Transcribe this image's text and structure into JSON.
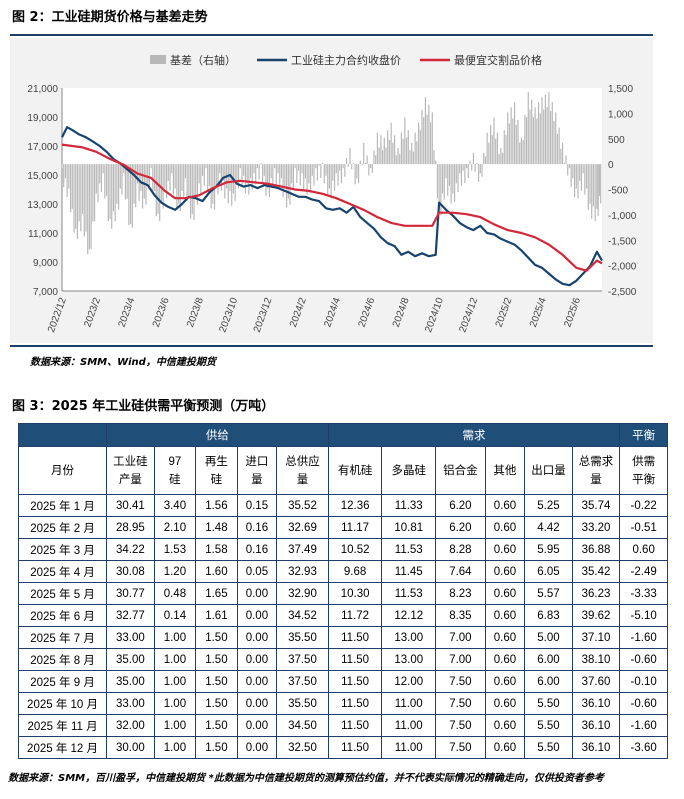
{
  "figure2_title": "图 2：工业硅期货价格与基差走势",
  "figure3_title": "图 3：2025 年工业硅供需平衡预测（万吨）",
  "source_chart": "数据来源：SMM、Wind，中信建投期货",
  "source_table": "数据来源：SMM，百川盈孚，中信建投期货 *此数据为中信建投期货的测算预估约值，并不代表实际情况的精确走向，仅供投资者参考",
  "colors": {
    "futures": "#17436f",
    "cheapest": "#d3283a",
    "basis": "#b8b8b8",
    "header": "#1f4e79"
  },
  "chart_data": {
    "type": "line",
    "legend": [
      "基差（右轴）",
      "工业硅主力合约收盘价",
      "最便宜交割品价格"
    ],
    "legend_position": "top",
    "y_left": {
      "min": 7000,
      "max": 21000,
      "ticks": [
        "7,000",
        "9,000",
        "11,000",
        "13,000",
        "15,000",
        "17,000",
        "19,000",
        "21,000"
      ]
    },
    "y_right": {
      "min": -2500,
      "max": 1500,
      "ticks": [
        "-2,500",
        "-2,000",
        "-1,500",
        "-1,000",
        "-500",
        "0",
        "500",
        "1,000",
        "1,500"
      ]
    },
    "x_ticks": [
      "2022/12",
      "2023/2",
      "2023/4",
      "2023/6",
      "2023/8",
      "2023/10",
      "2023/12",
      "2024/2",
      "2024/4",
      "2024/6",
      "2024/8",
      "2024/10",
      "2024/12",
      "2025/2",
      "2025/4",
      "2025/6"
    ],
    "series": [
      {
        "name": "工业硅主力合约收盘价",
        "axis": "left",
        "points": [
          [
            0,
            17600
          ],
          [
            0.15,
            18300
          ],
          [
            0.3,
            18100
          ],
          [
            0.5,
            17800
          ],
          [
            0.7,
            17600
          ],
          [
            0.9,
            17300
          ],
          [
            1.1,
            17000
          ],
          [
            1.3,
            16600
          ],
          [
            1.5,
            16100
          ],
          [
            1.7,
            15800
          ],
          [
            1.9,
            15400
          ],
          [
            2.1,
            15000
          ],
          [
            2.3,
            14500
          ],
          [
            2.5,
            14300
          ],
          [
            2.7,
            13600
          ],
          [
            2.9,
            13100
          ],
          [
            3.1,
            12800
          ],
          [
            3.3,
            12600
          ],
          [
            3.5,
            13000
          ],
          [
            3.7,
            13500
          ],
          [
            3.9,
            13400
          ],
          [
            4.1,
            13200
          ],
          [
            4.3,
            13800
          ],
          [
            4.5,
            14200
          ],
          [
            4.7,
            14800
          ],
          [
            4.9,
            15000
          ],
          [
            5.1,
            14400
          ],
          [
            5.3,
            14200
          ],
          [
            5.5,
            14300
          ],
          [
            5.7,
            14100
          ],
          [
            5.9,
            14300
          ],
          [
            6.1,
            14200
          ],
          [
            6.3,
            14100
          ],
          [
            6.5,
            13900
          ],
          [
            6.7,
            13700
          ],
          [
            6.9,
            13500
          ],
          [
            7.1,
            13500
          ],
          [
            7.3,
            13300
          ],
          [
            7.5,
            13200
          ],
          [
            7.7,
            12700
          ],
          [
            7.9,
            12600
          ],
          [
            8.1,
            12700
          ],
          [
            8.3,
            12400
          ],
          [
            8.5,
            12800
          ],
          [
            8.7,
            12100
          ],
          [
            8.9,
            11700
          ],
          [
            9.1,
            11300
          ],
          [
            9.3,
            10700
          ],
          [
            9.5,
            10300
          ],
          [
            9.7,
            10100
          ],
          [
            9.9,
            9500
          ],
          [
            10.1,
            9700
          ],
          [
            10.3,
            9400
          ],
          [
            10.5,
            9600
          ],
          [
            10.7,
            9400
          ],
          [
            10.9,
            9500
          ],
          [
            11.0,
            13100
          ],
          [
            11.2,
            12600
          ],
          [
            11.4,
            12200
          ],
          [
            11.6,
            11700
          ],
          [
            11.8,
            11400
          ],
          [
            12.0,
            11200
          ],
          [
            12.2,
            11500
          ],
          [
            12.4,
            11000
          ],
          [
            12.6,
            10900
          ],
          [
            12.8,
            10600
          ],
          [
            13.0,
            10400
          ],
          [
            13.2,
            10200
          ],
          [
            13.4,
            9800
          ],
          [
            13.6,
            9300
          ],
          [
            13.8,
            8800
          ],
          [
            14.0,
            8600
          ],
          [
            14.2,
            8200
          ],
          [
            14.4,
            7800
          ],
          [
            14.6,
            7500
          ],
          [
            14.8,
            7400
          ],
          [
            15.0,
            7700
          ],
          [
            15.2,
            8200
          ],
          [
            15.4,
            8700
          ],
          [
            15.6,
            9700
          ],
          [
            15.75,
            9100
          ]
        ]
      },
      {
        "name": "最便宜交割品价格",
        "axis": "left",
        "points": [
          [
            0,
            17100
          ],
          [
            0.3,
            17000
          ],
          [
            0.6,
            16900
          ],
          [
            1.0,
            16600
          ],
          [
            1.4,
            16100
          ],
          [
            1.8,
            15700
          ],
          [
            2.2,
            15100
          ],
          [
            2.6,
            14800
          ],
          [
            3.0,
            13900
          ],
          [
            3.3,
            13400
          ],
          [
            3.6,
            13400
          ],
          [
            4.0,
            13600
          ],
          [
            4.4,
            14100
          ],
          [
            4.8,
            14500
          ],
          [
            5.2,
            14600
          ],
          [
            5.6,
            14500
          ],
          [
            6.0,
            14400
          ],
          [
            6.4,
            14200
          ],
          [
            6.8,
            14000
          ],
          [
            7.2,
            13900
          ],
          [
            7.6,
            13700
          ],
          [
            8.0,
            13400
          ],
          [
            8.4,
            13000
          ],
          [
            8.8,
            12600
          ],
          [
            9.2,
            12100
          ],
          [
            9.6,
            11700
          ],
          [
            10.0,
            11500
          ],
          [
            10.4,
            11500
          ],
          [
            10.8,
            11500
          ],
          [
            11.0,
            12400
          ],
          [
            11.4,
            12400
          ],
          [
            11.8,
            12300
          ],
          [
            12.2,
            12100
          ],
          [
            12.6,
            11600
          ],
          [
            13.0,
            11200
          ],
          [
            13.4,
            11000
          ],
          [
            13.8,
            10700
          ],
          [
            14.2,
            10200
          ],
          [
            14.6,
            9500
          ],
          [
            15.0,
            8600
          ],
          [
            15.3,
            8400
          ],
          [
            15.6,
            9100
          ],
          [
            15.75,
            8900
          ]
        ]
      },
      {
        "name": "基差（右轴）",
        "axis": "right",
        "points": [
          [
            0,
            -200
          ],
          [
            0.2,
            -600
          ],
          [
            0.4,
            -1400
          ],
          [
            0.6,
            -1100
          ],
          [
            0.8,
            -1800
          ],
          [
            1.0,
            -700
          ],
          [
            1.2,
            -300
          ],
          [
            1.4,
            -1200
          ],
          [
            1.6,
            -900
          ],
          [
            1.8,
            -300
          ],
          [
            2.0,
            -1300
          ],
          [
            2.2,
            -500
          ],
          [
            2.4,
            -800
          ],
          [
            2.6,
            -200
          ],
          [
            2.8,
            -1100
          ],
          [
            3.0,
            -600
          ],
          [
            3.2,
            -300
          ],
          [
            3.4,
            -900
          ],
          [
            3.6,
            -400
          ],
          [
            3.8,
            -1100
          ],
          [
            4.0,
            -500
          ],
          [
            4.2,
            -200
          ],
          [
            4.4,
            -900
          ],
          [
            4.6,
            -300
          ],
          [
            4.8,
            -600
          ],
          [
            5.0,
            -700
          ],
          [
            5.2,
            -200
          ],
          [
            5.4,
            -500
          ],
          [
            5.6,
            -300
          ],
          [
            5.8,
            -100
          ],
          [
            6.0,
            -600
          ],
          [
            6.2,
            -200
          ],
          [
            6.4,
            -400
          ],
          [
            6.6,
            -800
          ],
          [
            6.8,
            -200
          ],
          [
            7.0,
            -300
          ],
          [
            7.2,
            -500
          ],
          [
            7.4,
            -200
          ],
          [
            7.6,
            -100
          ],
          [
            7.8,
            -600
          ],
          [
            8.0,
            -300
          ],
          [
            8.2,
            -200
          ],
          [
            8.4,
            200
          ],
          [
            8.6,
            -400
          ],
          [
            8.8,
            300
          ],
          [
            9.0,
            -200
          ],
          [
            9.2,
            500
          ],
          [
            9.4,
            400
          ],
          [
            9.6,
            700
          ],
          [
            9.8,
            200
          ],
          [
            10.0,
            800
          ],
          [
            10.2,
            300
          ],
          [
            10.4,
            700
          ],
          [
            10.6,
            1200
          ],
          [
            10.8,
            900
          ],
          [
            11.0,
            -1000
          ],
          [
            11.2,
            -400
          ],
          [
            11.4,
            -700
          ],
          [
            11.6,
            -300
          ],
          [
            11.8,
            -200
          ],
          [
            12.0,
            100
          ],
          [
            12.2,
            -300
          ],
          [
            12.4,
            500
          ],
          [
            12.6,
            800
          ],
          [
            12.8,
            200
          ],
          [
            13.0,
            900
          ],
          [
            13.2,
            1100
          ],
          [
            13.4,
            400
          ],
          [
            13.6,
            1300
          ],
          [
            13.8,
            1000
          ],
          [
            14.0,
            1200
          ],
          [
            14.2,
            1300
          ],
          [
            14.4,
            900
          ],
          [
            14.6,
            300
          ],
          [
            14.8,
            -200
          ],
          [
            15.0,
            -600
          ],
          [
            15.2,
            -300
          ],
          [
            15.4,
            -900
          ],
          [
            15.6,
            -1000
          ],
          [
            15.75,
            -500
          ]
        ]
      }
    ]
  },
  "table": {
    "group_headers": {
      "month": "月份",
      "supply": "供给",
      "demand": "需求",
      "balance": "平衡"
    },
    "sub_headers": [
      "工业硅\n产量",
      "97\n硅",
      "再生\n硅",
      "进口\n量",
      "总供应\n量",
      "有机硅",
      "多晶硅",
      "铝合金",
      "其他",
      "出口量",
      "总需求\n量",
      "供需\n平衡"
    ],
    "rows": [
      [
        "2025 年 1 月",
        "30.41",
        "3.40",
        "1.56",
        "0.15",
        "35.52",
        "12.36",
        "11.33",
        "6.20",
        "0.60",
        "5.25",
        "35.74",
        "-0.22"
      ],
      [
        "2025 年 2 月",
        "28.95",
        "2.10",
        "1.48",
        "0.16",
        "32.69",
        "11.17",
        "10.81",
        "6.20",
        "0.60",
        "4.42",
        "33.20",
        "-0.51"
      ],
      [
        "2025 年 3 月",
        "34.22",
        "1.53",
        "1.58",
        "0.16",
        "37.49",
        "10.52",
        "11.53",
        "8.28",
        "0.60",
        "5.95",
        "36.88",
        "0.60"
      ],
      [
        "2025 年 4 月",
        "30.08",
        "1.20",
        "1.60",
        "0.05",
        "32.93",
        "9.68",
        "11.45",
        "7.64",
        "0.60",
        "6.05",
        "35.42",
        "-2.49"
      ],
      [
        "2025 年 5 月",
        "30.77",
        "0.48",
        "1.65",
        "0.00",
        "32.90",
        "10.30",
        "11.53",
        "8.23",
        "0.60",
        "5.57",
        "36.23",
        "-3.33"
      ],
      [
        "2025 年 6 月",
        "32.77",
        "0.14",
        "1.61",
        "0.00",
        "34.52",
        "11.72",
        "12.12",
        "8.35",
        "0.60",
        "6.83",
        "39.62",
        "-5.10"
      ],
      [
        "2025 年 7 月",
        "33.00",
        "1.00",
        "1.50",
        "0.00",
        "35.50",
        "11.50",
        "13.00",
        "7.00",
        "0.60",
        "5.00",
        "37.10",
        "-1.60"
      ],
      [
        "2025 年 8 月",
        "35.00",
        "1.00",
        "1.50",
        "0.00",
        "37.50",
        "11.50",
        "13.00",
        "7.00",
        "0.60",
        "6.00",
        "38.10",
        "-0.60"
      ],
      [
        "2025 年 9 月",
        "35.00",
        "1.00",
        "1.50",
        "0.00",
        "37.50",
        "11.50",
        "12.00",
        "7.50",
        "0.60",
        "6.00",
        "37.60",
        "-0.10"
      ],
      [
        "2025 年 10 月",
        "33.00",
        "1.00",
        "1.50",
        "0.00",
        "35.50",
        "11.50",
        "11.00",
        "7.50",
        "0.60",
        "5.50",
        "36.10",
        "-0.60"
      ],
      [
        "2025 年 11 月",
        "32.00",
        "1.00",
        "1.50",
        "0.00",
        "34.50",
        "11.50",
        "11.00",
        "7.50",
        "0.60",
        "5.50",
        "36.10",
        "-1.60"
      ],
      [
        "2025 年 12 月",
        "30.00",
        "1.00",
        "1.50",
        "0.00",
        "32.50",
        "11.50",
        "11.00",
        "7.50",
        "0.60",
        "5.50",
        "36.10",
        "-3.60"
      ]
    ]
  }
}
